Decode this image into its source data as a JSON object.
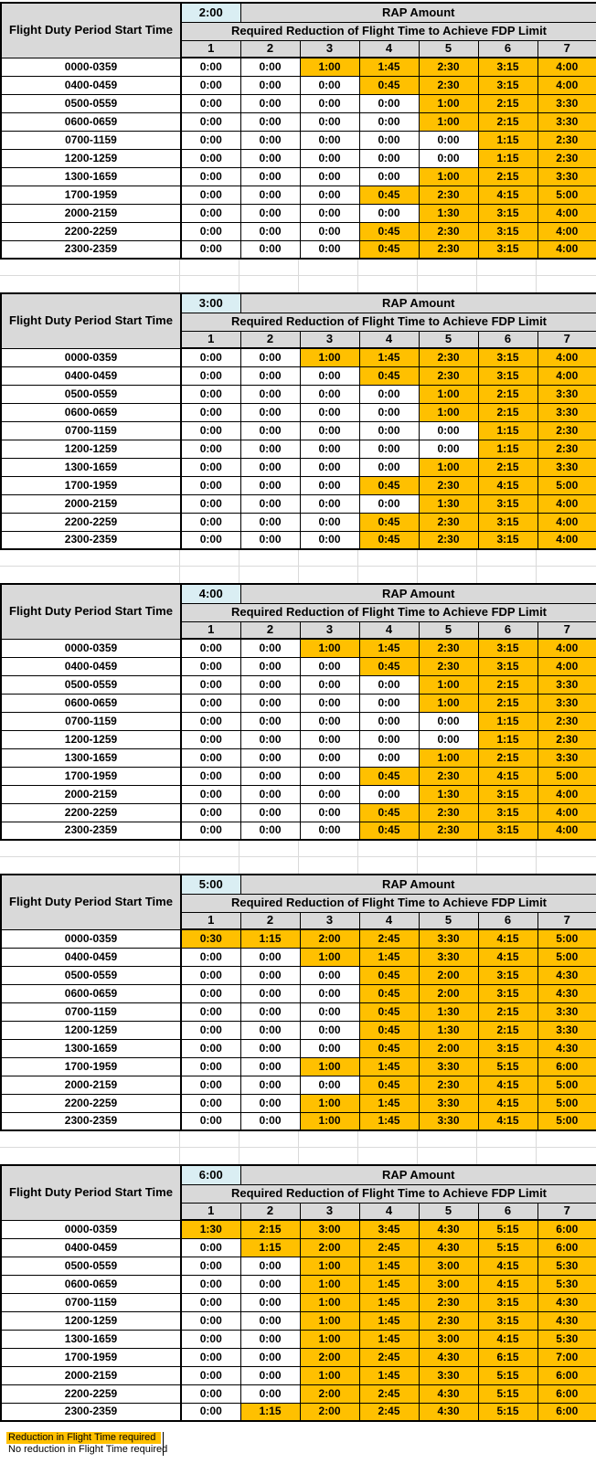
{
  "sheet": {
    "row_label_header": "Flight Duty Period Start Time",
    "rap_amount_header": "RAP Amount",
    "reduction_header": "Required Reduction of Flight Time to Achieve FDP Limit",
    "fdp_limit_columns": [
      "1",
      "2",
      "3",
      "4",
      "5",
      "6",
      "7"
    ],
    "start_times": [
      "0000-0359",
      "0400-0459",
      "0500-0559",
      "0600-0659",
      "0700-1159",
      "1200-1259",
      "1300-1659",
      "1700-1959",
      "2000-2159",
      "2200-2259",
      "2300-2359"
    ],
    "no_reduction_value": "0:00",
    "tables": [
      {
        "rap_amount": "2:00",
        "values": [
          [
            "0:00",
            "0:00",
            "1:00",
            "1:45",
            "2:30",
            "3:15",
            "4:00"
          ],
          [
            "0:00",
            "0:00",
            "0:00",
            "0:45",
            "2:30",
            "3:15",
            "4:00"
          ],
          [
            "0:00",
            "0:00",
            "0:00",
            "0:00",
            "1:00",
            "2:15",
            "3:30"
          ],
          [
            "0:00",
            "0:00",
            "0:00",
            "0:00",
            "1:00",
            "2:15",
            "3:30"
          ],
          [
            "0:00",
            "0:00",
            "0:00",
            "0:00",
            "0:00",
            "1:15",
            "2:30"
          ],
          [
            "0:00",
            "0:00",
            "0:00",
            "0:00",
            "0:00",
            "1:15",
            "2:30"
          ],
          [
            "0:00",
            "0:00",
            "0:00",
            "0:00",
            "1:00",
            "2:15",
            "3:30"
          ],
          [
            "0:00",
            "0:00",
            "0:00",
            "0:45",
            "2:30",
            "4:15",
            "5:00"
          ],
          [
            "0:00",
            "0:00",
            "0:00",
            "0:00",
            "1:30",
            "3:15",
            "4:00"
          ],
          [
            "0:00",
            "0:00",
            "0:00",
            "0:45",
            "2:30",
            "3:15",
            "4:00"
          ],
          [
            "0:00",
            "0:00",
            "0:00",
            "0:45",
            "2:30",
            "3:15",
            "4:00"
          ]
        ]
      },
      {
        "rap_amount": "3:00",
        "values": [
          [
            "0:00",
            "0:00",
            "1:00",
            "1:45",
            "2:30",
            "3:15",
            "4:00"
          ],
          [
            "0:00",
            "0:00",
            "0:00",
            "0:45",
            "2:30",
            "3:15",
            "4:00"
          ],
          [
            "0:00",
            "0:00",
            "0:00",
            "0:00",
            "1:00",
            "2:15",
            "3:30"
          ],
          [
            "0:00",
            "0:00",
            "0:00",
            "0:00",
            "1:00",
            "2:15",
            "3:30"
          ],
          [
            "0:00",
            "0:00",
            "0:00",
            "0:00",
            "0:00",
            "1:15",
            "2:30"
          ],
          [
            "0:00",
            "0:00",
            "0:00",
            "0:00",
            "0:00",
            "1:15",
            "2:30"
          ],
          [
            "0:00",
            "0:00",
            "0:00",
            "0:00",
            "1:00",
            "2:15",
            "3:30"
          ],
          [
            "0:00",
            "0:00",
            "0:00",
            "0:45",
            "2:30",
            "4:15",
            "5:00"
          ],
          [
            "0:00",
            "0:00",
            "0:00",
            "0:00",
            "1:30",
            "3:15",
            "4:00"
          ],
          [
            "0:00",
            "0:00",
            "0:00",
            "0:45",
            "2:30",
            "3:15",
            "4:00"
          ],
          [
            "0:00",
            "0:00",
            "0:00",
            "0:45",
            "2:30",
            "3:15",
            "4:00"
          ]
        ]
      },
      {
        "rap_amount": "4:00",
        "values": [
          [
            "0:00",
            "0:00",
            "1:00",
            "1:45",
            "2:30",
            "3:15",
            "4:00"
          ],
          [
            "0:00",
            "0:00",
            "0:00",
            "0:45",
            "2:30",
            "3:15",
            "4:00"
          ],
          [
            "0:00",
            "0:00",
            "0:00",
            "0:00",
            "1:00",
            "2:15",
            "3:30"
          ],
          [
            "0:00",
            "0:00",
            "0:00",
            "0:00",
            "1:00",
            "2:15",
            "3:30"
          ],
          [
            "0:00",
            "0:00",
            "0:00",
            "0:00",
            "0:00",
            "1:15",
            "2:30"
          ],
          [
            "0:00",
            "0:00",
            "0:00",
            "0:00",
            "0:00",
            "1:15",
            "2:30"
          ],
          [
            "0:00",
            "0:00",
            "0:00",
            "0:00",
            "1:00",
            "2:15",
            "3:30"
          ],
          [
            "0:00",
            "0:00",
            "0:00",
            "0:45",
            "2:30",
            "4:15",
            "5:00"
          ],
          [
            "0:00",
            "0:00",
            "0:00",
            "0:00",
            "1:30",
            "3:15",
            "4:00"
          ],
          [
            "0:00",
            "0:00",
            "0:00",
            "0:45",
            "2:30",
            "3:15",
            "4:00"
          ],
          [
            "0:00",
            "0:00",
            "0:00",
            "0:45",
            "2:30",
            "3:15",
            "4:00"
          ]
        ]
      },
      {
        "rap_amount": "5:00",
        "values": [
          [
            "0:30",
            "1:15",
            "2:00",
            "2:45",
            "3:30",
            "4:15",
            "5:00"
          ],
          [
            "0:00",
            "0:00",
            "1:00",
            "1:45",
            "3:30",
            "4:15",
            "5:00"
          ],
          [
            "0:00",
            "0:00",
            "0:00",
            "0:45",
            "2:00",
            "3:15",
            "4:30"
          ],
          [
            "0:00",
            "0:00",
            "0:00",
            "0:45",
            "2:00",
            "3:15",
            "4:30"
          ],
          [
            "0:00",
            "0:00",
            "0:00",
            "0:45",
            "1:30",
            "2:15",
            "3:30"
          ],
          [
            "0:00",
            "0:00",
            "0:00",
            "0:45",
            "1:30",
            "2:15",
            "3:30"
          ],
          [
            "0:00",
            "0:00",
            "0:00",
            "0:45",
            "2:00",
            "3:15",
            "4:30"
          ],
          [
            "0:00",
            "0:00",
            "1:00",
            "1:45",
            "3:30",
            "5:15",
            "6:00"
          ],
          [
            "0:00",
            "0:00",
            "0:00",
            "0:45",
            "2:30",
            "4:15",
            "5:00"
          ],
          [
            "0:00",
            "0:00",
            "1:00",
            "1:45",
            "3:30",
            "4:15",
            "5:00"
          ],
          [
            "0:00",
            "0:00",
            "1:00",
            "1:45",
            "3:30",
            "4:15",
            "5:00"
          ]
        ]
      },
      {
        "rap_amount": "6:00",
        "values": [
          [
            "1:30",
            "2:15",
            "3:00",
            "3:45",
            "4:30",
            "5:15",
            "6:00"
          ],
          [
            "0:00",
            "1:15",
            "2:00",
            "2:45",
            "4:30",
            "5:15",
            "6:00"
          ],
          [
            "0:00",
            "0:00",
            "1:00",
            "1:45",
            "3:00",
            "4:15",
            "5:30"
          ],
          [
            "0:00",
            "0:00",
            "1:00",
            "1:45",
            "3:00",
            "4:15",
            "5:30"
          ],
          [
            "0:00",
            "0:00",
            "1:00",
            "1:45",
            "2:30",
            "3:15",
            "4:30"
          ],
          [
            "0:00",
            "0:00",
            "1:00",
            "1:45",
            "2:30",
            "3:15",
            "4:30"
          ],
          [
            "0:00",
            "0:00",
            "1:00",
            "1:45",
            "3:00",
            "4:15",
            "5:30"
          ],
          [
            "0:00",
            "0:00",
            "2:00",
            "2:45",
            "4:30",
            "6:15",
            "7:00"
          ],
          [
            "0:00",
            "0:00",
            "1:00",
            "1:45",
            "3:30",
            "5:15",
            "6:00"
          ],
          [
            "0:00",
            "0:00",
            "2:00",
            "2:45",
            "4:30",
            "5:15",
            "6:00"
          ],
          [
            "0:00",
            "1:15",
            "2:00",
            "2:45",
            "4:30",
            "5:15",
            "6:00"
          ]
        ]
      }
    ]
  },
  "legend": {
    "reduction_required": "Reduction in Flight Time required",
    "no_reduction_required": "No reduction in Flight Time required"
  },
  "colors": {
    "highlight_orange": "#FFC000",
    "header_gray": "#D9D9D9",
    "rap_value_blue": "#DAEEF3",
    "gridline_gray": "#DADADA",
    "border_black": "#000000"
  }
}
